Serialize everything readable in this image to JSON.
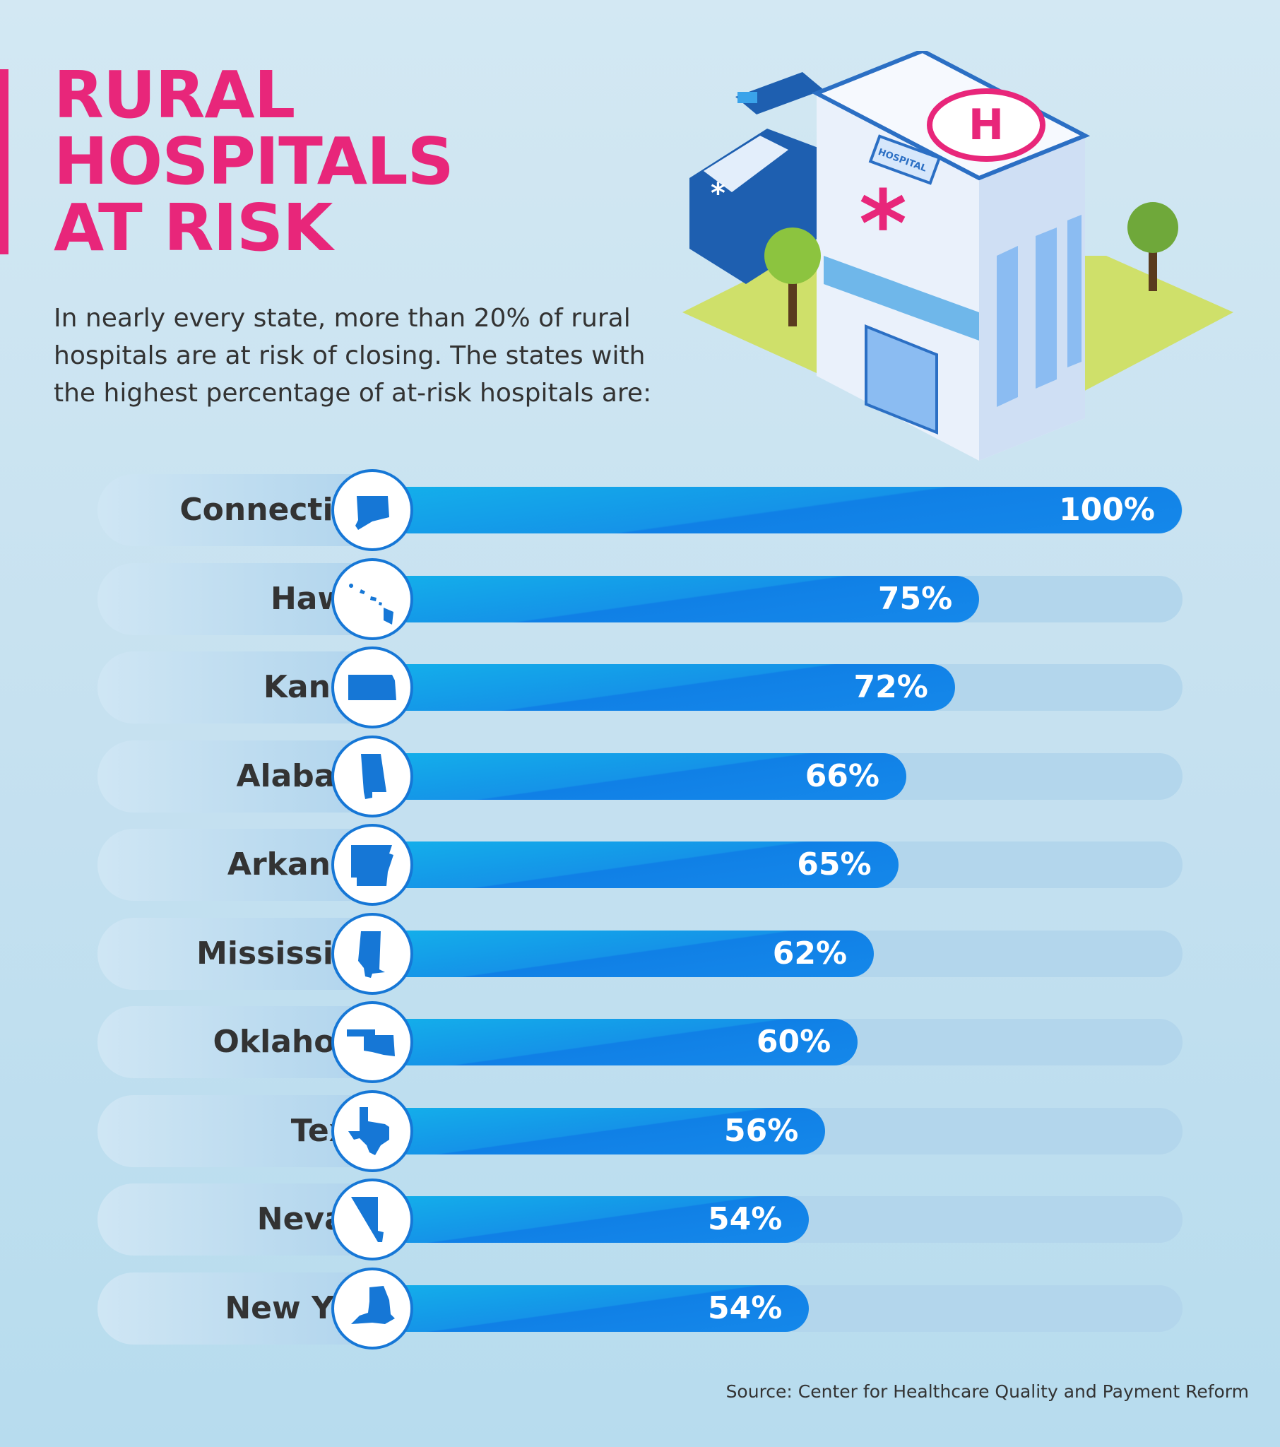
{
  "header": {
    "title_lines": [
      "RURAL",
      "HOSPITALS",
      "AT RISK"
    ],
    "intro": "In nearly every state, more than 20% of rural hospitals are at risk of closing. The states with the highest percentage of at-risk hospitals are:",
    "illustration_sign": "HOSPITAL",
    "illustration_helipad": "H"
  },
  "colors": {
    "title": "#e8267a",
    "bar": "#1588ea",
    "track": "#b3d6ec",
    "background": "#c6e1f0",
    "icon": "#1677d6"
  },
  "chart_data": {
    "type": "bar",
    "orientation": "horizontal",
    "xlim": [
      0,
      100
    ],
    "categories": [
      "Connecticut",
      "Hawaii",
      "Kansas",
      "Alabama",
      "Arkansas",
      "Mississippi",
      "Oklahoma",
      "Texas",
      "Nevada",
      "New York"
    ],
    "values": [
      100,
      75,
      72,
      66,
      65,
      62,
      60,
      56,
      54,
      54
    ],
    "labels": [
      "100%",
      "75%",
      "72%",
      "66%",
      "65%",
      "62%",
      "60%",
      "56%",
      "54%",
      "54%"
    ],
    "icons": [
      "connecticut-map-icon",
      "hawaii-map-icon",
      "kansas-map-icon",
      "alabama-map-icon",
      "arkansas-map-icon",
      "mississippi-map-icon",
      "oklahoma-map-icon",
      "texas-map-icon",
      "nevada-map-icon",
      "new-york-map-icon"
    ]
  },
  "footer": {
    "source": "Source: Center for Healthcare Quality and Payment Reform"
  }
}
